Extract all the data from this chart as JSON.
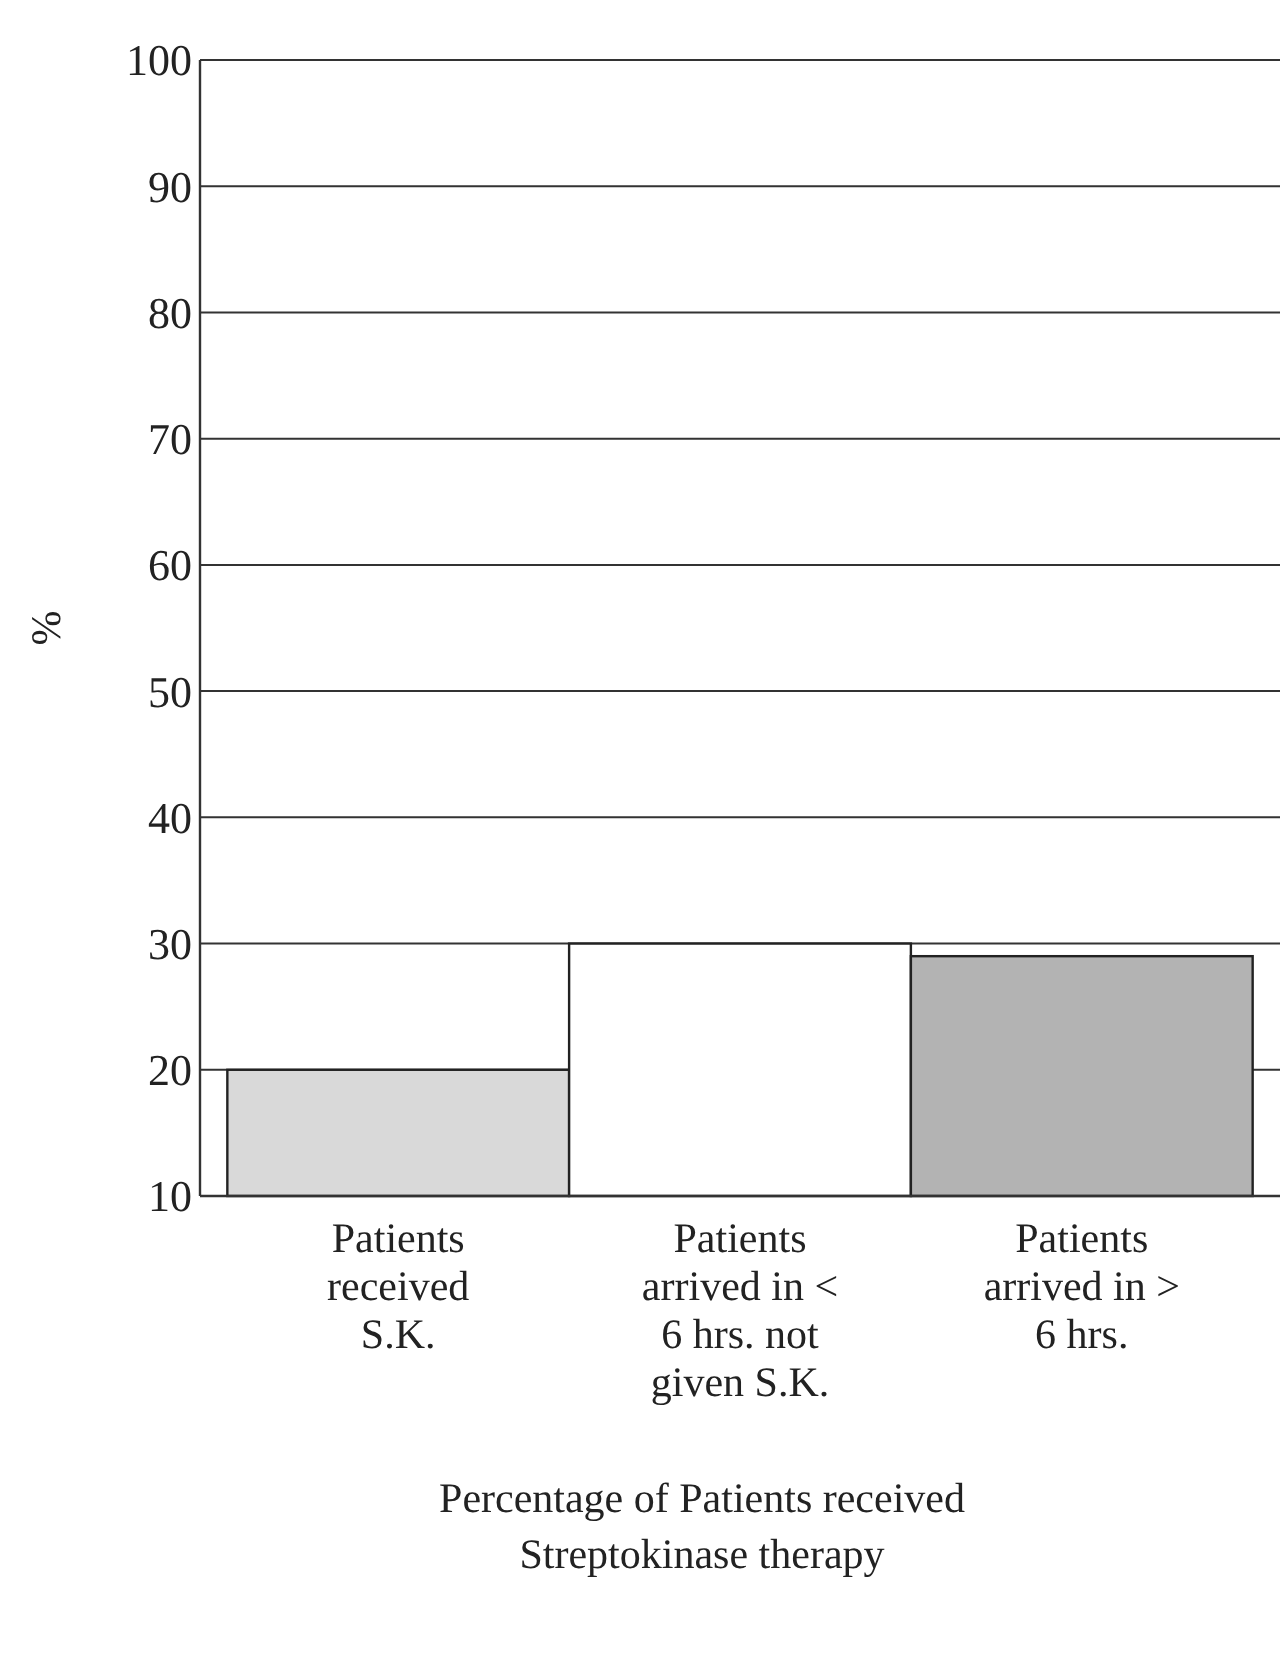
{
  "chart_data": {
    "type": "bar",
    "xlabel": "Percentage of Patients received Streptokinase therapy",
    "ylabel": "%",
    "categories": [
      "Patients received S.K.",
      "Patients arrived in < 6 hrs. not given S.K.",
      "Patients arrived in > 6 hrs."
    ],
    "values": [
      20,
      30,
      29
    ],
    "colors": [
      "#d9d9d9",
      "#ffffff",
      "#b3b3b3"
    ],
    "ylim": [
      10,
      100
    ],
    "yticks": [
      10,
      20,
      30,
      40,
      50,
      60,
      70,
      80,
      90,
      100
    ],
    "grid": "y"
  }
}
